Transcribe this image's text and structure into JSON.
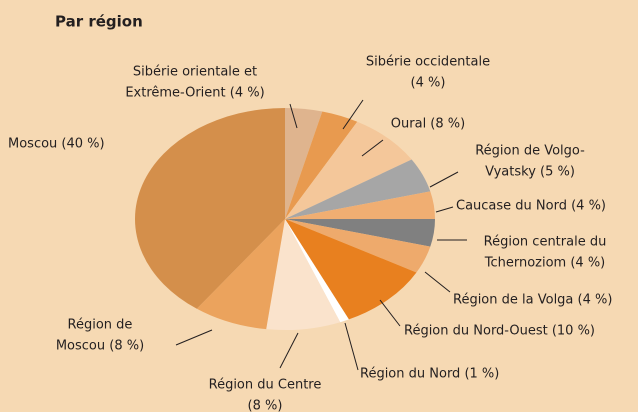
{
  "chart_data": {
    "type": "pie",
    "title": "Par région",
    "values": [
      4,
      4,
      8,
      5,
      4,
      4,
      4,
      10,
      1,
      8,
      8,
      40
    ],
    "value_labels": [
      [
        "Sibérie orientale et",
        "Extrême-Orient (4 %)"
      ],
      [
        "Sibérie occidentale",
        "(4 %)"
      ],
      [
        "Oural (8 %)"
      ],
      [
        "Région de Volgo-",
        "Vyatsky (5 %)"
      ],
      [
        "Caucase du Nord (4 %)"
      ],
      [
        "Région centrale du",
        "Tchernoziom (4 %)"
      ],
      [
        "Région de la Volga (4 %)"
      ],
      [
        "Région du Nord-Ouest (10 %)"
      ],
      [
        "Région du Nord (1 %)"
      ],
      [
        "Région du Centre",
        "(8 %)"
      ],
      [
        "Région de",
        "Moscou (8 %)"
      ],
      [
        "Moscou (40 %)"
      ]
    ],
    "colors": [
      "#dfb48e",
      "#e89a4f",
      "#f4c79a",
      "#a6a6a6",
      "#f0ae72",
      "#808080",
      "#eeaa6c",
      "#e8801f",
      "#ffffff",
      "#fae3cc",
      "#eba35d",
      "#d48f4b"
    ]
  }
}
